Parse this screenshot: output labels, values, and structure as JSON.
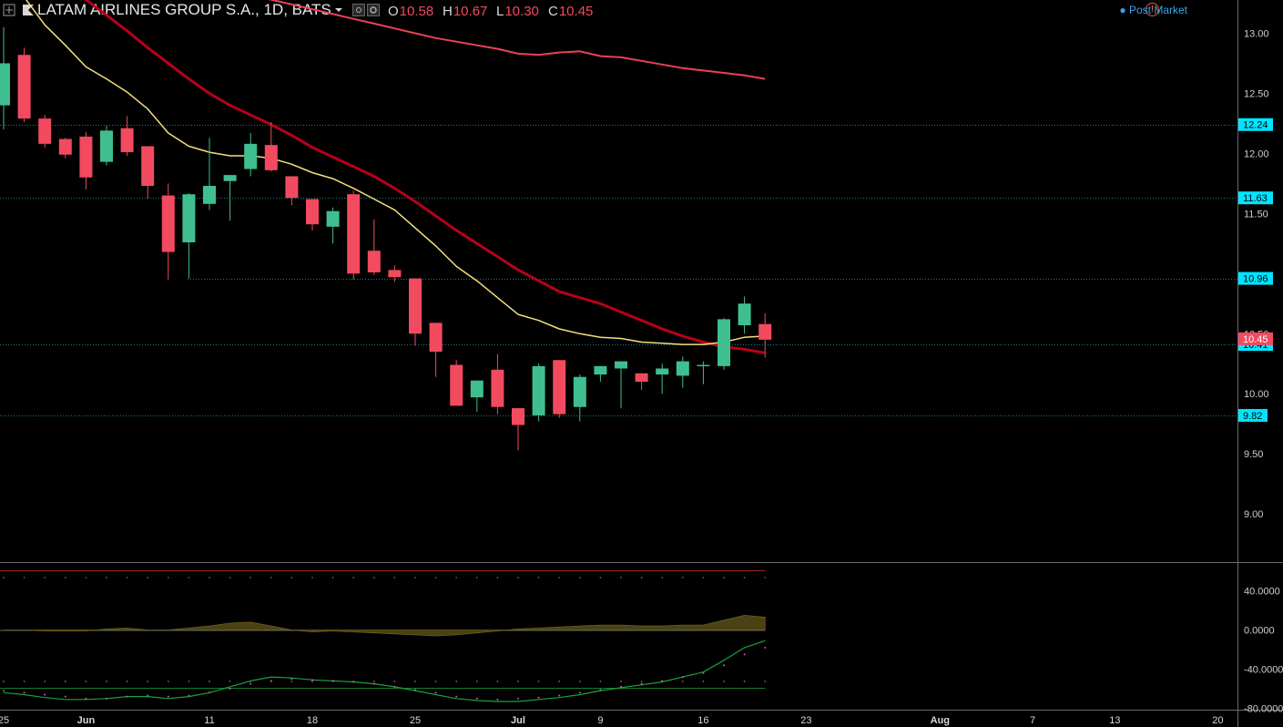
{
  "header": {
    "title": "LATAM AIRLINES GROUP S.A., 1D, BATS",
    "ohlc": [
      {
        "key": "O",
        "value": "10.58"
      },
      {
        "key": "H",
        "value": "10.67"
      },
      {
        "key": "L",
        "value": "10.30"
      },
      {
        "key": "C",
        "value": "10.45"
      }
    ],
    "post_market": "Post Market",
    "warning": "!"
  },
  "colors": {
    "up": "#3fbf8f",
    "down": "#f24a5f",
    "ma_fast": "#f5e07a",
    "ma_mid": "#b8001a",
    "ma_slow": "#ec4156",
    "level_line": "#2fb6c8",
    "level_label_bg": "#00e5ff",
    "last_price_bg": "#f24a5f",
    "osc_green": "#1aa23a",
    "osc_area": "#4a4214"
  },
  "chart_data": [
    {
      "type": "candlestick",
      "x_tick_labels": [
        "25",
        "Jun",
        "11",
        "18",
        "25",
        "Jul",
        "9",
        "16",
        "23",
        "Aug",
        "7",
        "13",
        "20"
      ],
      "y_tick_labels": [
        "13.00",
        "12.50",
        "12.00",
        "11.50",
        "10.50",
        "10.00",
        "9.50",
        "9.00"
      ],
      "ylim": [
        8.6,
        13.3
      ],
      "candles": [
        {
          "o": 12.4,
          "h": 13.05,
          "l": 12.2,
          "c": 12.75
        },
        {
          "o": 12.82,
          "h": 12.88,
          "l": 12.26,
          "c": 12.29
        },
        {
          "o": 12.29,
          "h": 12.32,
          "l": 12.05,
          "c": 12.08
        },
        {
          "o": 12.12,
          "h": 12.13,
          "l": 11.96,
          "c": 11.99
        },
        {
          "o": 12.14,
          "h": 12.18,
          "l": 11.7,
          "c": 11.8
        },
        {
          "o": 11.93,
          "h": 12.23,
          "l": 11.9,
          "c": 12.19
        },
        {
          "o": 12.21,
          "h": 12.31,
          "l": 11.98,
          "c": 12.01
        },
        {
          "o": 12.06,
          "h": 12.06,
          "l": 11.62,
          "c": 11.73
        },
        {
          "o": 11.65,
          "h": 11.75,
          "l": 10.95,
          "c": 11.18
        },
        {
          "o": 11.26,
          "h": 11.67,
          "l": 10.96,
          "c": 11.66
        },
        {
          "o": 11.58,
          "h": 12.13,
          "l": 11.53,
          "c": 11.73
        },
        {
          "o": 11.77,
          "h": 11.82,
          "l": 11.44,
          "c": 11.82
        },
        {
          "o": 11.87,
          "h": 12.17,
          "l": 11.81,
          "c": 12.08
        },
        {
          "o": 12.07,
          "h": 12.26,
          "l": 11.85,
          "c": 11.86
        },
        {
          "o": 11.81,
          "h": 11.81,
          "l": 11.57,
          "c": 11.63
        },
        {
          "o": 11.62,
          "h": 11.62,
          "l": 11.36,
          "c": 11.41
        },
        {
          "o": 11.39,
          "h": 11.55,
          "l": 11.25,
          "c": 11.52
        },
        {
          "o": 11.66,
          "h": 11.69,
          "l": 10.95,
          "c": 11.0
        },
        {
          "o": 11.19,
          "h": 11.45,
          "l": 10.99,
          "c": 11.01
        },
        {
          "o": 11.03,
          "h": 11.07,
          "l": 10.93,
          "c": 10.97
        },
        {
          "o": 10.96,
          "h": 10.96,
          "l": 10.4,
          "c": 10.5
        },
        {
          "o": 10.59,
          "h": 10.59,
          "l": 10.14,
          "c": 10.35
        },
        {
          "o": 10.24,
          "h": 10.28,
          "l": 9.9,
          "c": 9.9
        },
        {
          "o": 9.97,
          "h": 10.11,
          "l": 9.85,
          "c": 10.11
        },
        {
          "o": 10.2,
          "h": 10.33,
          "l": 9.83,
          "c": 9.89
        },
        {
          "o": 9.88,
          "h": 9.88,
          "l": 9.53,
          "c": 9.74
        },
        {
          "o": 9.82,
          "h": 10.25,
          "l": 9.77,
          "c": 10.23
        },
        {
          "o": 10.28,
          "h": 10.28,
          "l": 9.8,
          "c": 9.83
        },
        {
          "o": 9.89,
          "h": 10.16,
          "l": 9.77,
          "c": 10.14
        },
        {
          "o": 10.16,
          "h": 10.23,
          "l": 10.1,
          "c": 10.23
        },
        {
          "o": 10.21,
          "h": 10.27,
          "l": 9.88,
          "c": 10.27
        },
        {
          "o": 10.17,
          "h": 10.17,
          "l": 10.03,
          "c": 10.1
        },
        {
          "o": 10.16,
          "h": 10.25,
          "l": 10.0,
          "c": 10.21
        },
        {
          "o": 10.15,
          "h": 10.31,
          "l": 10.05,
          "c": 10.27
        },
        {
          "o": 10.23,
          "h": 10.27,
          "l": 10.08,
          "c": 10.24
        },
        {
          "o": 10.23,
          "h": 10.63,
          "l": 10.2,
          "c": 10.62
        },
        {
          "o": 10.57,
          "h": 10.81,
          "l": 10.5,
          "c": 10.75
        },
        {
          "o": 10.58,
          "h": 10.67,
          "l": 10.3,
          "c": 10.45
        }
      ],
      "ma_fast": [
        13.5,
        13.3,
        13.07,
        12.9,
        12.72,
        12.62,
        12.51,
        12.37,
        12.17,
        12.06,
        12.01,
        11.98,
        11.98,
        11.96,
        11.91,
        11.84,
        11.79,
        11.71,
        11.62,
        11.53,
        11.38,
        11.23,
        11.06,
        10.94,
        10.8,
        10.66,
        10.61,
        10.54,
        10.5,
        10.47,
        10.46,
        10.43,
        10.42,
        10.41,
        10.41,
        10.43,
        10.47,
        10.48
      ],
      "ma_mid": [
        13.8,
        13.7,
        13.55,
        13.42,
        13.28,
        13.15,
        13.02,
        12.88,
        12.75,
        12.62,
        12.5,
        12.4,
        12.32,
        12.24,
        12.15,
        12.05,
        11.97,
        11.89,
        11.81,
        11.71,
        11.6,
        11.48,
        11.36,
        11.25,
        11.14,
        11.03,
        10.94,
        10.85,
        10.8,
        10.75,
        10.68,
        10.61,
        10.54,
        10.48,
        10.43,
        10.39,
        10.37,
        10.34
      ],
      "ma_slow": [
        14.1,
        14.03,
        13.95,
        13.88,
        13.81,
        13.74,
        13.67,
        13.6,
        13.53,
        13.46,
        13.4,
        13.35,
        13.31,
        13.28,
        13.24,
        13.2,
        13.16,
        13.12,
        13.08,
        13.04,
        13.0,
        12.96,
        12.93,
        12.9,
        12.87,
        12.83,
        12.82,
        12.84,
        12.85,
        12.81,
        12.8,
        12.77,
        12.74,
        12.71,
        12.69,
        12.67,
        12.65,
        12.62
      ],
      "levels": [
        {
          "price": 12.24,
          "label": "12.24"
        },
        {
          "price": 11.63,
          "label": "11.63"
        },
        {
          "price": 10.96,
          "label": "10.96"
        },
        {
          "price": 10.41,
          "label": "10.41"
        },
        {
          "price": 9.82,
          "label": "9.82"
        }
      ],
      "last_price": {
        "price": 10.45,
        "label": "10.45"
      }
    },
    {
      "type": "line",
      "y_tick_labels": [
        "40.0000",
        "0.0000",
        "-40.0000",
        "-80.0000"
      ],
      "ylim": [
        -80,
        60
      ],
      "upper_band": 60,
      "lower_band": -60,
      "area_values": [
        0,
        0,
        -1,
        -1,
        -1,
        1,
        2,
        0,
        0,
        2,
        4,
        7,
        8,
        4,
        0,
        -2,
        -1,
        -2,
        -3,
        -4,
        -5,
        -6,
        -5,
        -3,
        -1,
        1,
        2,
        3,
        4,
        5,
        5,
        4,
        4,
        5,
        5,
        10,
        15,
        13
      ],
      "green_line": [
        -64,
        -66,
        -69,
        -71,
        -71,
        -70,
        -68,
        -68,
        -70,
        -68,
        -64,
        -58,
        -52,
        -48,
        -49,
        -51,
        -52,
        -53,
        -55,
        -58,
        -62,
        -66,
        -70,
        -72,
        -73,
        -73,
        -71,
        -69,
        -66,
        -62,
        -59,
        -56,
        -53,
        -48,
        -43,
        -31,
        -18,
        -11
      ],
      "signal_dots": [
        -62,
        -64,
        -66,
        -68,
        -70,
        -70,
        -68,
        -67,
        -68,
        -67,
        -64,
        -60,
        -55,
        -52,
        -50,
        -51,
        -52,
        -53,
        -55,
        -58,
        -61,
        -64,
        -68,
        -70,
        -71,
        -70,
        -69,
        -67,
        -64,
        -61,
        -58,
        -55,
        -52,
        -48,
        -44,
        -36,
        -25,
        -18
      ]
    }
  ]
}
